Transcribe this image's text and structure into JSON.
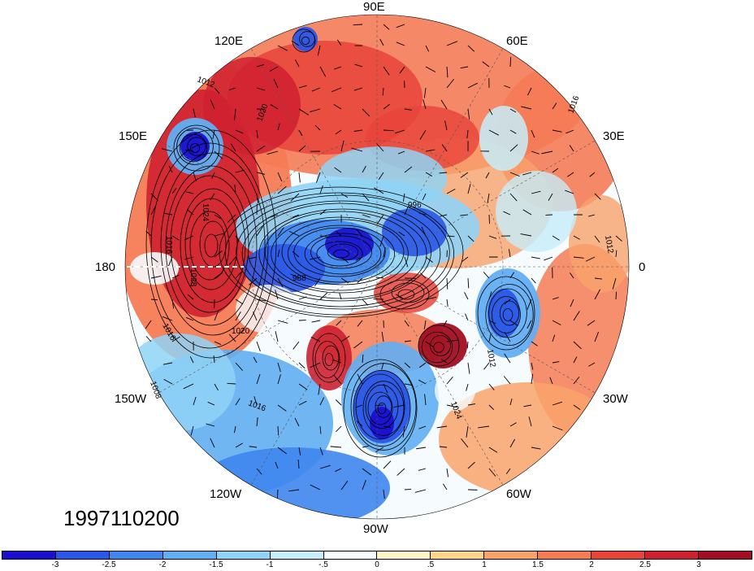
{
  "map": {
    "projection": "north-polar-stereographic",
    "fill_field_range": [
      -3,
      3
    ],
    "contour_field_units": "hPa",
    "wind_barbs": true
  },
  "longitude_labels": [
    {
      "text": "90E",
      "lon": 90
    },
    {
      "text": "60E",
      "lon": 60
    },
    {
      "text": "30E",
      "lon": 30
    },
    {
      "text": "0",
      "lon": 0
    },
    {
      "text": "30W",
      "lon": -30
    },
    {
      "text": "60W",
      "lon": -60
    },
    {
      "text": "90W",
      "lon": -90
    },
    {
      "text": "120W",
      "lon": -120
    },
    {
      "text": "150W",
      "lon": -150
    },
    {
      "text": "180",
      "lon": 180
    },
    {
      "text": "150E",
      "lon": 150
    },
    {
      "text": "120E",
      "lon": 120
    }
  ],
  "contour_labels": [
    "1012",
    "1020",
    "1016",
    "1024",
    "1028",
    "996",
    "988",
    "1012",
    "1020",
    "1016",
    "1008",
    "1016",
    "1024",
    "1012",
    "1016"
  ],
  "date_stamp": "1997110200",
  "colorbar": {
    "colors": [
      "#1a0fcf",
      "#2a57e8",
      "#3f86ee",
      "#62aef2",
      "#8fd3f6",
      "#c6eefa",
      "#f6fbfd",
      "#fff4c8",
      "#fed58a",
      "#f9a36b",
      "#f57b55",
      "#e8443a",
      "#cf2030",
      "#a20e22"
    ],
    "tick_labels": [
      "-3",
      "-2.5",
      "-2",
      "-1.5",
      "-1",
      "-.5",
      "0",
      ".5",
      "1",
      "1.5",
      "2",
      "2.5",
      "3"
    ]
  }
}
